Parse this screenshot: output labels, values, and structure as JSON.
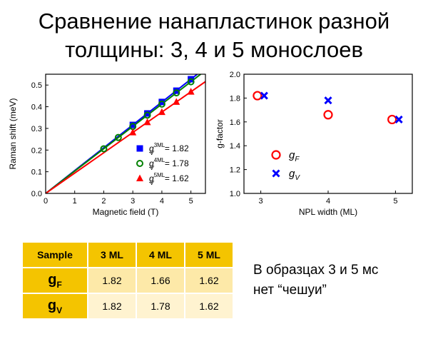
{
  "slide": {
    "title_line1": "Сравнение нанапластинок разной",
    "title_line2": "толщины: 3, 4 и 5 монослоев",
    "note_line1": "В образцах 3 и 5 мс",
    "note_line2": "нет “чешуи”"
  },
  "colors": {
    "blue": "#0000ff",
    "green": "#008000",
    "red": "#ff0000",
    "table_header": "#f4c400",
    "table_cell": "#fde9a8"
  },
  "chart_data": [
    {
      "type": "scatter",
      "xlabel": "Magnetic field (T)",
      "ylabel": "Raman shift (meV)",
      "xlim": [
        0,
        5.5
      ],
      "ylim": [
        0,
        0.55
      ],
      "xticks": [
        "0",
        "1",
        "2",
        "3",
        "4",
        "5"
      ],
      "yticks": [
        "0.0",
        "0.1",
        "0.2",
        "0.3",
        "0.4",
        "0.5"
      ],
      "legend": {
        "position": "bottom-right",
        "prefix": "g",
        "sub": "V",
        "sep": " = "
      },
      "series": [
        {
          "name": "3ML",
          "value": "1.82",
          "color": "#0000ff",
          "marker": "square",
          "slope": 0.1054,
          "x": [
            3.0,
            3.5,
            4.0,
            4.5,
            5.0
          ],
          "y": [
            0.316,
            0.369,
            0.422,
            0.474,
            0.527
          ]
        },
        {
          "name": "4ML",
          "value": "1.78",
          "color": "#008000",
          "marker": "circle",
          "slope": 0.1031,
          "x": [
            2.0,
            2.5,
            3.0,
            3.5,
            4.0,
            4.5,
            5.0
          ],
          "y": [
            0.206,
            0.258,
            0.309,
            0.361,
            0.412,
            0.464,
            0.515
          ]
        },
        {
          "name": "5ML",
          "value": "1.62",
          "color": "#ff0000",
          "marker": "triangle",
          "slope": 0.0938,
          "x": [
            3.0,
            3.5,
            4.0,
            4.5,
            5.0
          ],
          "y": [
            0.281,
            0.328,
            0.375,
            0.422,
            0.469
          ]
        }
      ]
    },
    {
      "type": "scatter",
      "xlabel": "NPL width (ML)",
      "ylabel": "g-factor",
      "xlim": [
        2.75,
        5.25
      ],
      "ylim": [
        1.0,
        2.0
      ],
      "xticks": [
        "3",
        "4",
        "5"
      ],
      "xtick_values": [
        3,
        4,
        5
      ],
      "yticks": [
        "1.0",
        "1.2",
        "1.4",
        "1.6",
        "1.8",
        "2.0"
      ],
      "legend": {
        "position": "center-left"
      },
      "series": [
        {
          "name": "g",
          "sub": "F",
          "color": "#ff0000",
          "marker": "circle",
          "x": [
            2.95,
            4.0,
            4.95
          ],
          "y": [
            1.82,
            1.66,
            1.62
          ]
        },
        {
          "name": "g",
          "sub": "V",
          "color": "#0000ff",
          "marker": "cross",
          "x": [
            3.05,
            4.0,
            5.05
          ],
          "y": [
            1.82,
            1.78,
            1.62
          ]
        }
      ]
    }
  ],
  "table": {
    "headers": [
      "Sample",
      "3 ML",
      "4 ML",
      "5 ML"
    ],
    "rows": [
      {
        "label_main": "g",
        "label_sub": "F",
        "values": [
          "1.82",
          "1.66",
          "1.62"
        ]
      },
      {
        "label_main": "g",
        "label_sub": "V",
        "values": [
          "1.82",
          "1.78",
          "1.62"
        ]
      }
    ]
  }
}
